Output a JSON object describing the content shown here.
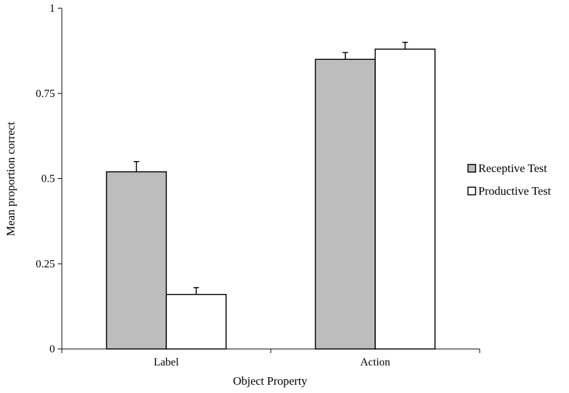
{
  "chart_data": {
    "type": "bar",
    "categories": [
      "Label",
      "Action"
    ],
    "series": [
      {
        "name": "Receptive Test",
        "values": [
          0.52,
          0.85
        ],
        "errors": [
          0.03,
          0.02
        ],
        "color": "#bdbdbd"
      },
      {
        "name": "Productive Test",
        "values": [
          0.16,
          0.88
        ],
        "errors": [
          0.02,
          0.02
        ],
        "color": "#ffffff"
      }
    ],
    "xlabel": "Object Property",
    "ylabel": "Mean proportion correct",
    "ylim": [
      0,
      1
    ],
    "yticks": [
      0,
      0.25,
      0.5,
      0.75,
      1
    ],
    "ytick_labels": [
      "0",
      "0.25",
      "0.5",
      "0.75",
      "1"
    ],
    "grid": false,
    "legend": "right"
  }
}
